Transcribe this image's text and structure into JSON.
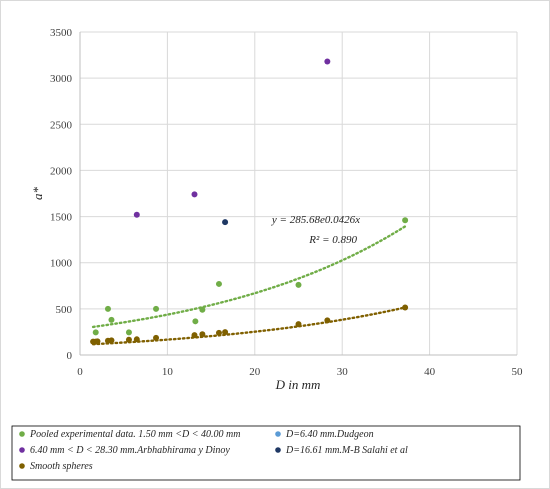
{
  "chart_data": {
    "type": "scatter",
    "xlabel": "D in mm",
    "ylabel": "a*",
    "xlim": [
      0,
      50
    ],
    "ylim": [
      0,
      3500
    ],
    "x_ticks": [
      0,
      10,
      20,
      30,
      40,
      50
    ],
    "y_ticks": [
      0,
      500,
      1000,
      1500,
      2000,
      2500,
      3000,
      3500
    ],
    "grid": true,
    "legend_position": "bottom",
    "colors": {
      "pooled": "#70AD47",
      "dudgeon": "#5B9BD5",
      "arbhabhirama": "#7030A0",
      "salahi": "#1F3864",
      "smooth": "#7F6000",
      "smooth_fit": "#806000",
      "axis": "#BFBFBF",
      "grid": "#D9D9D9"
    },
    "series": [
      {
        "key": "pooled",
        "name": "Pooled experimental data. 1.50 mm  <D < 40.00 mm",
        "points": [
          [
            1.8,
            245
          ],
          [
            3.2,
            500
          ],
          [
            3.6,
            380
          ],
          [
            5.6,
            245
          ],
          [
            8.7,
            500
          ],
          [
            13.2,
            365
          ],
          [
            14.0,
            490
          ],
          [
            15.9,
            770
          ],
          [
            25.0,
            760
          ],
          [
            37.2,
            1460
          ]
        ]
      },
      {
        "key": "dudgeon",
        "name": "D=6.40 mm.Dudgeon",
        "points": []
      },
      {
        "key": "arbhabhirama",
        "name": "6.40 mm < D < 28.30 mm.Arbhabhirama y Dinoy",
        "points": [
          [
            6.5,
            1520
          ],
          [
            13.1,
            1740
          ],
          [
            28.3,
            3180
          ]
        ]
      },
      {
        "key": "salahi",
        "name": "D=16.61 mm.M-B Salahi et al",
        "points": [
          [
            16.6,
            1440
          ]
        ]
      },
      {
        "key": "smooth",
        "name": "Smooth spheres",
        "points": [
          [
            1.5,
            145
          ],
          [
            1.8,
            145
          ],
          [
            2.0,
            148
          ],
          [
            3.2,
            155
          ],
          [
            3.6,
            158
          ],
          [
            5.6,
            165
          ],
          [
            6.5,
            170
          ],
          [
            8.7,
            185
          ],
          [
            13.1,
            215
          ],
          [
            14.0,
            225
          ],
          [
            15.9,
            240
          ],
          [
            16.6,
            248
          ],
          [
            25.0,
            335
          ],
          [
            28.3,
            375
          ],
          [
            37.2,
            515
          ]
        ]
      }
    ],
    "trendlines": [
      {
        "series": "pooled",
        "a": 285.68,
        "b": 0.0426,
        "x_from": 1.5,
        "x_to": 37.2
      },
      {
        "series": "smooth",
        "a": 110.0,
        "b": 0.0415,
        "x_from": 1.5,
        "x_to": 37.2
      }
    ],
    "annotations": {
      "equation": "y = 285.68e0.0426x",
      "r_squared": "R² = 0.890"
    }
  }
}
